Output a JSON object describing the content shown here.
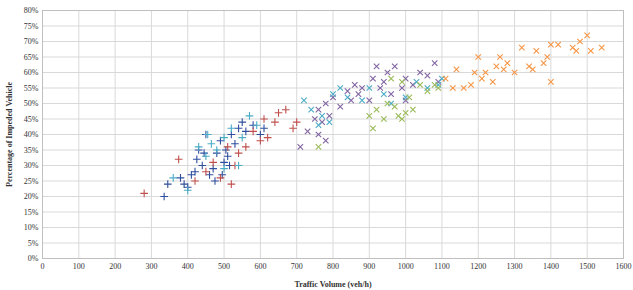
{
  "chart_data": {
    "type": "scatter",
    "x_label": "Traffic Volume (veh/h)",
    "y_label": "Percentage of Impeded Vehicle",
    "xlim": [
      0,
      1600
    ],
    "xticks": [
      0,
      100,
      200,
      300,
      400,
      500,
      600,
      700,
      800,
      900,
      1000,
      1100,
      1200,
      1300,
      1400,
      1500,
      1600
    ],
    "ylim": [
      0,
      80
    ],
    "yticks": [
      {
        "value": 0,
        "label": "0%"
      },
      {
        "value": 5,
        "label": "5%"
      },
      {
        "value": 10,
        "label": "10%"
      },
      {
        "value": 15,
        "label": "15%"
      },
      {
        "value": 20,
        "label": "20%"
      },
      {
        "value": 25,
        "label": "25%"
      },
      {
        "value": 30,
        "label": "30%"
      },
      {
        "value": 35,
        "label": "35%"
      },
      {
        "value": 40,
        "label": "40%"
      },
      {
        "value": 45,
        "label": "45%"
      },
      {
        "value": 50,
        "label": "50%"
      },
      {
        "value": 55,
        "label": "55%"
      },
      {
        "value": 60,
        "label": "60%"
      },
      {
        "value": 65,
        "label": "65%"
      },
      {
        "value": 70,
        "label": "70%"
      },
      {
        "value": 75,
        "label": "75%"
      },
      {
        "value": 80,
        "label": "80%"
      }
    ],
    "grid": true,
    "series": [
      {
        "color": "#2f4f9e",
        "marker": "plus",
        "x": [
          335,
          345,
          380,
          390,
          400,
          410,
          420,
          425,
          430,
          440,
          445,
          450,
          460,
          470,
          480,
          490,
          500,
          505,
          510,
          520,
          530,
          540,
          550,
          560,
          580,
          600,
          610,
          475,
          495,
          515
        ],
        "y": [
          20,
          24,
          26,
          24,
          23,
          27,
          28,
          32,
          35,
          30,
          34,
          40,
          27,
          29,
          34,
          38,
          31,
          35,
          33,
          40,
          37,
          42,
          44,
          41,
          43,
          40,
          42,
          25,
          27,
          30
        ]
      },
      {
        "color": "#c0504d",
        "marker": "plus",
        "x": [
          280,
          375,
          420,
          450,
          470,
          490,
          510,
          520,
          530,
          540,
          560,
          580,
          600,
          620,
          640,
          650,
          670,
          690,
          700,
          610
        ],
        "y": [
          21,
          32,
          25,
          28,
          31,
          26,
          36,
          24,
          30,
          34,
          36,
          41,
          38,
          39,
          44,
          47,
          48,
          42,
          44,
          45
        ]
      },
      {
        "color": "#4bacc6",
        "marker": "plus",
        "x": [
          360,
          400,
          430,
          450,
          465,
          480,
          500,
          520,
          550,
          570,
          590,
          540,
          455,
          500
        ],
        "y": [
          26,
          22,
          36,
          33,
          37,
          35,
          39,
          42,
          39,
          46,
          43,
          30,
          40,
          29
        ]
      },
      {
        "color": "#8064a2",
        "marker": "times",
        "x": [
          710,
          730,
          750,
          760,
          770,
          780,
          790,
          800,
          820,
          840,
          850,
          860,
          870,
          880,
          900,
          910,
          920,
          930,
          940,
          950,
          960,
          970,
          990,
          1000,
          1020,
          1040,
          1060,
          1080,
          1090,
          1000,
          760,
          780
        ],
        "y": [
          36,
          41,
          45,
          48,
          44,
          50,
          46,
          52,
          49,
          54,
          51,
          56,
          53,
          55,
          51,
          58,
          62,
          55,
          57,
          60,
          53,
          62,
          55,
          58,
          56,
          60,
          59,
          63,
          57,
          51,
          40,
          38
        ]
      },
      {
        "color": "#4bacc6",
        "marker": "times",
        "x": [
          720,
          740,
          760,
          770,
          790,
          800,
          820,
          840,
          880,
          900,
          940,
          960,
          1000,
          1030,
          1060,
          1090,
          1100
        ],
        "y": [
          51,
          48,
          43,
          46,
          44,
          53,
          55,
          52,
          51,
          55,
          53,
          50,
          52,
          57,
          55,
          56,
          58
        ]
      },
      {
        "color": "#9bbb59",
        "marker": "times",
        "x": [
          760,
          900,
          910,
          920,
          940,
          950,
          960,
          970,
          980,
          990,
          1000,
          1010,
          1020,
          1040,
          1060,
          1080,
          1090,
          990
        ],
        "y": [
          36,
          46,
          42,
          48,
          45,
          50,
          58,
          49,
          46,
          45,
          47,
          52,
          48,
          56,
          54,
          56,
          55,
          57
        ]
      },
      {
        "color": "#f79646",
        "marker": "times",
        "x": [
          1110,
          1130,
          1140,
          1160,
          1180,
          1190,
          1200,
          1210,
          1220,
          1240,
          1250,
          1260,
          1270,
          1280,
          1300,
          1320,
          1340,
          1350,
          1360,
          1380,
          1390,
          1400,
          1400,
          1420,
          1460,
          1470,
          1480,
          1500,
          1510,
          1540
        ],
        "y": [
          58,
          55,
          61,
          55,
          56,
          60,
          65,
          58,
          60,
          57,
          62,
          65,
          61,
          63,
          60,
          68,
          62,
          61,
          67,
          63,
          65,
          69,
          57,
          69,
          68,
          67,
          70,
          72,
          67,
          68
        ]
      }
    ]
  }
}
